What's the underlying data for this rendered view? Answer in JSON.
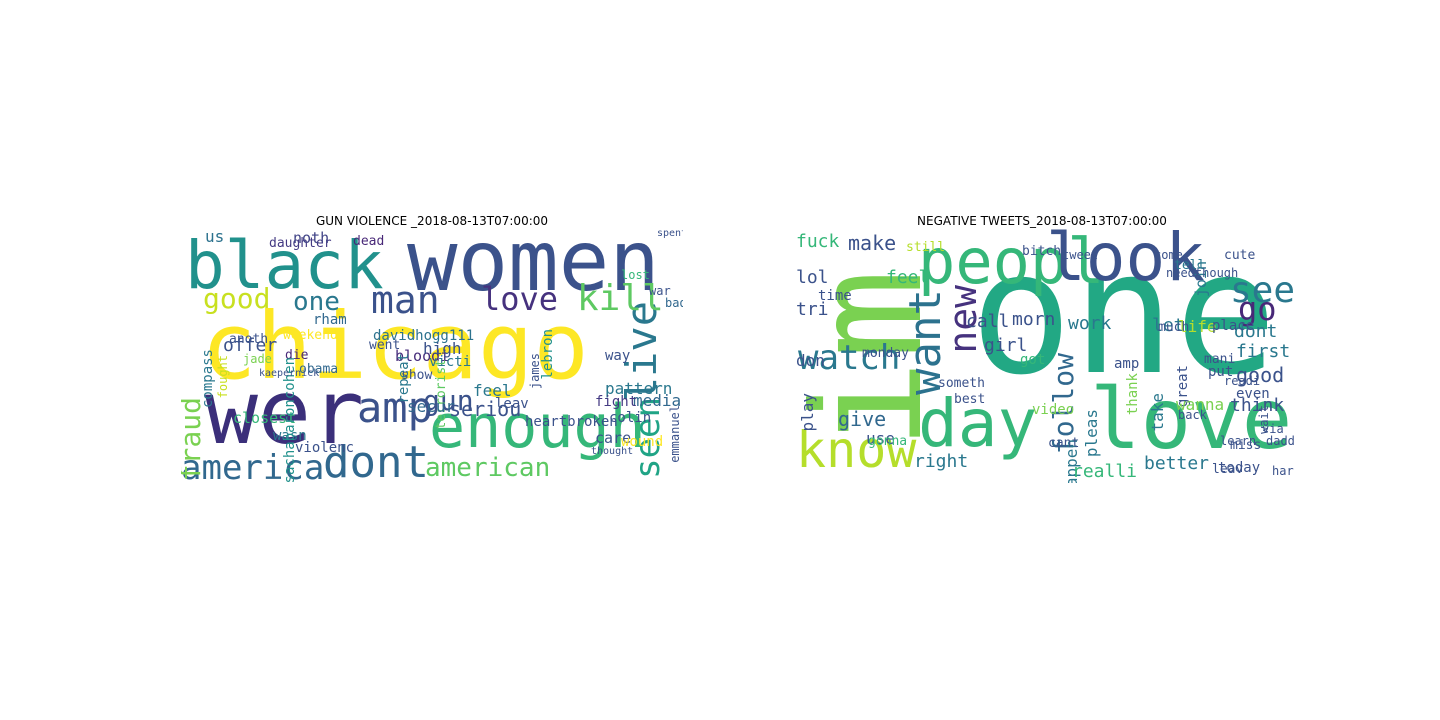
{
  "panels": [
    {
      "title": "GUN VIOLENCE _2018-08-13T07:00:00",
      "words": [
        {
          "text": "chicago",
          "color": "#fde725"
        },
        {
          "text": "wer",
          "color": "#3b2f7a"
        },
        {
          "text": "women",
          "color": "#3b528b"
        },
        {
          "text": "black",
          "color": "#21918c"
        },
        {
          "text": "enough",
          "color": "#35b779"
        },
        {
          "text": "dont",
          "color": "#31688e"
        },
        {
          "text": "america",
          "color": "#31688e"
        },
        {
          "text": "amp",
          "color": "#3b528b"
        },
        {
          "text": "american",
          "color": "#5ec962"
        },
        {
          "text": "live",
          "color": "#2a788e"
        },
        {
          "text": "kill",
          "color": "#5ec962"
        },
        {
          "text": "love",
          "color": "#46327e"
        },
        {
          "text": "man",
          "color": "#3b528b"
        },
        {
          "text": "good",
          "color": "#c8e020"
        },
        {
          "text": "one",
          "color": "#2a788e"
        },
        {
          "text": "seen",
          "color": "#20a486"
        },
        {
          "text": "gun",
          "color": "#3b528b"
        },
        {
          "text": "fraud",
          "color": "#7ad151"
        },
        {
          "text": "seriou",
          "color": "#3b528b"
        },
        {
          "text": "pattern",
          "color": "#2a788e"
        },
        {
          "text": "media",
          "color": "#31688e"
        },
        {
          "text": "us",
          "color": "#2c728e"
        },
        {
          "text": "daughter",
          "color": "#443a83"
        },
        {
          "text": "noth",
          "color": "#414487"
        },
        {
          "text": "dead",
          "color": "#482878"
        },
        {
          "text": "rham",
          "color": "#31688e"
        },
        {
          "text": "went",
          "color": "#3b528b"
        },
        {
          "text": "bloodi",
          "color": "#472d7b"
        },
        {
          "text": "davidhogg111",
          "color": "#2c728e"
        },
        {
          "text": "weekend",
          "color": "#fde725"
        },
        {
          "text": "anoth",
          "color": "#3b528b"
        },
        {
          "text": "offer",
          "color": "#3b528b"
        },
        {
          "text": "jade",
          "color": "#7ad151"
        },
        {
          "text": "obama",
          "color": "#31688e"
        },
        {
          "text": "die",
          "color": "#482878"
        },
        {
          "text": "repeat",
          "color": "#2a788e"
        },
        {
          "text": "high",
          "color": "#3b528b"
        },
        {
          "text": "victi",
          "color": "#2a788e"
        },
        {
          "text": "terrorist",
          "color": "#5ec962"
        },
        {
          "text": "show",
          "color": "#3b528b"
        },
        {
          "text": "secur",
          "color": "#31688e"
        },
        {
          "text": "closest",
          "color": "#35b779"
        },
        {
          "text": "wasn",
          "color": "#2a788e"
        },
        {
          "text": "violenc",
          "color": "#3b528b"
        },
        {
          "text": "compass",
          "color": "#2a788e"
        },
        {
          "text": "fought",
          "color": "#c8e020"
        },
        {
          "text": "sachabaroncohen",
          "color": "#21918c"
        },
        {
          "text": "feel",
          "color": "#2a788e"
        },
        {
          "text": "heartbroken",
          "color": "#3b528b"
        },
        {
          "text": "fight",
          "color": "#443a83"
        },
        {
          "text": "care",
          "color": "#3b528b"
        },
        {
          "text": "wound",
          "color": "#fde725"
        },
        {
          "text": "colin",
          "color": "#3b528b"
        },
        {
          "text": "way",
          "color": "#3b528b"
        },
        {
          "text": "lebron",
          "color": "#21918c"
        },
        {
          "text": "james",
          "color": "#3b528b"
        },
        {
          "text": "war",
          "color": "#3b528b"
        },
        {
          "text": "lost",
          "color": "#35b779"
        },
        {
          "text": "bad",
          "color": "#31688e"
        },
        {
          "text": "emmanuel",
          "color": "#3b528b"
        },
        {
          "text": "leav",
          "color": "#3b528b"
        },
        {
          "text": "spent",
          "color": "#3b528b"
        },
        {
          "text": "thought",
          "color": "#3b528b"
        },
        {
          "text": "kaepernick",
          "color": "#3b528b"
        }
      ]
    },
    {
      "title": "NEGATIVE TWEETS_2018-08-13T07:00:00",
      "words": [
        {
          "text": "one",
          "color": "#22a884"
        },
        {
          "text": "im",
          "color": "#7ad151"
        },
        {
          "text": "love",
          "color": "#35b779"
        },
        {
          "text": "day",
          "color": "#35b779"
        },
        {
          "text": "peopl",
          "color": "#35b779"
        },
        {
          "text": "look",
          "color": "#3b528b"
        },
        {
          "text": "know",
          "color": "#b5de2b"
        },
        {
          "text": "watch",
          "color": "#2a788e"
        },
        {
          "text": "want",
          "color": "#2c728e"
        },
        {
          "text": "new",
          "color": "#46327e"
        },
        {
          "text": "see",
          "color": "#2a788e"
        },
        {
          "text": "go",
          "color": "#482878"
        },
        {
          "text": "follow",
          "color": "#31688e"
        },
        {
          "text": "make",
          "color": "#3b528b"
        },
        {
          "text": "fuck",
          "color": "#35b779"
        },
        {
          "text": "lol",
          "color": "#3b528b"
        },
        {
          "text": "feel",
          "color": "#35b779"
        },
        {
          "text": "call",
          "color": "#3b528b"
        },
        {
          "text": "morn",
          "color": "#3b528b"
        },
        {
          "text": "work",
          "color": "#2a788e"
        },
        {
          "text": "let",
          "color": "#2a788e"
        },
        {
          "text": "life",
          "color": "#b5de2b"
        },
        {
          "text": "join",
          "color": "#2a788e"
        },
        {
          "text": "tri",
          "color": "#3b528b"
        },
        {
          "text": "time",
          "color": "#3b528b"
        },
        {
          "text": "don",
          "color": "#3b528b"
        },
        {
          "text": "give",
          "color": "#31688e"
        },
        {
          "text": "right",
          "color": "#2a788e"
        },
        {
          "text": "use",
          "color": "#3b528b"
        },
        {
          "text": "play",
          "color": "#3b528b"
        },
        {
          "text": "girl",
          "color": "#3b528b"
        },
        {
          "text": "got",
          "color": "#35b779"
        },
        {
          "text": "happen",
          "color": "#2a788e"
        },
        {
          "text": "pleas",
          "color": "#2a788e"
        },
        {
          "text": "thank",
          "color": "#7ad151"
        },
        {
          "text": "take",
          "color": "#2a788e"
        },
        {
          "text": "great",
          "color": "#3b528b"
        },
        {
          "text": "dont",
          "color": "#2a788e"
        },
        {
          "text": "first",
          "color": "#2a788e"
        },
        {
          "text": "good",
          "color": "#3b528b"
        },
        {
          "text": "even",
          "color": "#3b528b"
        },
        {
          "text": "think",
          "color": "#3b528b"
        },
        {
          "text": "wanna",
          "color": "#7ad151"
        },
        {
          "text": "realli",
          "color": "#35b779"
        },
        {
          "text": "better",
          "color": "#2a788e"
        },
        {
          "text": "today",
          "color": "#3b528b"
        },
        {
          "text": "cute",
          "color": "#3b528b"
        },
        {
          "text": "mani",
          "color": "#3b528b"
        },
        {
          "text": "put",
          "color": "#3b528b"
        },
        {
          "text": "amp",
          "color": "#3b528b"
        },
        {
          "text": "place",
          "color": "#3b528b"
        },
        {
          "text": "monday",
          "color": "#3b528b"
        },
        {
          "text": "someth",
          "color": "#3b528b"
        },
        {
          "text": "video",
          "color": "#7ad151"
        },
        {
          "text": "still",
          "color": "#b5de2b"
        },
        {
          "text": "bitch",
          "color": "#3b528b"
        },
        {
          "text": "tweet",
          "color": "#3b528b"
        },
        {
          "text": "come",
          "color": "#3b528b"
        },
        {
          "text": "tell",
          "color": "#2a788e"
        },
        {
          "text": "much",
          "color": "#3b528b"
        },
        {
          "text": "needthough",
          "color": "#3b528b"
        },
        {
          "text": "gonna",
          "color": "#35b779"
        },
        {
          "text": "readi",
          "color": "#3b528b"
        },
        {
          "text": "best",
          "color": "#3b528b"
        },
        {
          "text": "miss",
          "color": "#3b528b"
        },
        {
          "text": "via",
          "color": "#3b528b"
        },
        {
          "text": "wait",
          "color": "#3b528b"
        },
        {
          "text": "daddi",
          "color": "#3b528b"
        },
        {
          "text": "leav",
          "color": "#3b528b"
        },
        {
          "text": "cant",
          "color": "#3b528b"
        },
        {
          "text": "hard",
          "color": "#3b528b"
        },
        {
          "text": "learn",
          "color": "#3b528b"
        },
        {
          "text": "back",
          "color": "#3b528b"
        }
      ]
    }
  ]
}
